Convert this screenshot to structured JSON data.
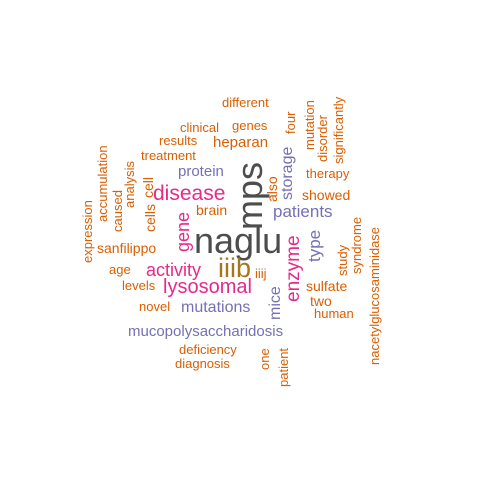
{
  "colors": {
    "dark_gray": "#4d4d4d",
    "olive": "#a6761d",
    "magenta": "#e7298a",
    "purple": "#7570b3",
    "orange": "#d95f02",
    "background": "#ffffff"
  },
  "words": [
    {
      "text": "naglu",
      "color": "dark_gray",
      "orientation": "horizontal"
    },
    {
      "text": "mps",
      "color": "dark_gray",
      "orientation": "vertical"
    },
    {
      "text": "iiib",
      "color": "olive",
      "orientation": "horizontal"
    },
    {
      "text": "disease",
      "color": "magenta",
      "orientation": "horizontal"
    },
    {
      "text": "lysosomal",
      "color": "magenta",
      "orientation": "horizontal"
    },
    {
      "text": "activity",
      "color": "magenta",
      "orientation": "horizontal"
    },
    {
      "text": "gene",
      "color": "magenta",
      "orientation": "vertical"
    },
    {
      "text": "enzyme",
      "color": "magenta",
      "orientation": "vertical"
    },
    {
      "text": "patients",
      "color": "purple",
      "orientation": "horizontal"
    },
    {
      "text": "mutations",
      "color": "purple",
      "orientation": "horizontal"
    },
    {
      "text": "mucopolysaccharidosis",
      "color": "purple",
      "orientation": "horizontal"
    },
    {
      "text": "protein",
      "color": "purple",
      "orientation": "horizontal"
    },
    {
      "text": "storage",
      "color": "purple",
      "orientation": "vertical"
    },
    {
      "text": "type",
      "color": "purple",
      "orientation": "vertical"
    },
    {
      "text": "mice",
      "color": "purple",
      "orientation": "vertical"
    },
    {
      "text": "heparan",
      "color": "orange",
      "orientation": "horizontal"
    },
    {
      "text": "brain",
      "color": "orange",
      "orientation": "horizontal"
    },
    {
      "text": "showed",
      "color": "orange",
      "orientation": "horizontal"
    },
    {
      "text": "sulfate",
      "color": "orange",
      "orientation": "horizontal"
    },
    {
      "text": "therapy",
      "color": "orange",
      "orientation": "horizontal"
    },
    {
      "text": "sanfilippo",
      "color": "orange",
      "orientation": "horizontal"
    },
    {
      "text": "treatment",
      "color": "orange",
      "orientation": "horizontal"
    },
    {
      "text": "clinical",
      "color": "orange",
      "orientation": "horizontal"
    },
    {
      "text": "genes",
      "color": "orange",
      "orientation": "horizontal"
    },
    {
      "text": "results",
      "color": "orange",
      "orientation": "horizontal"
    },
    {
      "text": "different",
      "color": "orange",
      "orientation": "horizontal"
    },
    {
      "text": "two",
      "color": "orange",
      "orientation": "horizontal"
    },
    {
      "text": "human",
      "color": "orange",
      "orientation": "horizontal"
    },
    {
      "text": "novel",
      "color": "orange",
      "orientation": "horizontal"
    },
    {
      "text": "levels",
      "color": "orange",
      "orientation": "horizontal"
    },
    {
      "text": "age",
      "color": "orange",
      "orientation": "horizontal"
    },
    {
      "text": "deficiency",
      "color": "orange",
      "orientation": "horizontal"
    },
    {
      "text": "diagnosis",
      "color": "orange",
      "orientation": "horizontal"
    },
    {
      "text": "iiij",
      "color": "orange",
      "orientation": "horizontal"
    },
    {
      "text": "cell",
      "color": "orange",
      "orientation": "vertical"
    },
    {
      "text": "cells",
      "color": "orange",
      "orientation": "vertical"
    },
    {
      "text": "caused",
      "color": "orange",
      "orientation": "vertical"
    },
    {
      "text": "analysis",
      "color": "orange",
      "orientation": "vertical"
    },
    {
      "text": "accumulation",
      "color": "orange",
      "orientation": "vertical"
    },
    {
      "text": "expression",
      "color": "orange",
      "orientation": "vertical"
    },
    {
      "text": "also",
      "color": "orange",
      "orientation": "vertical"
    },
    {
      "text": "four",
      "color": "orange",
      "orientation": "vertical"
    },
    {
      "text": "mutation",
      "color": "orange",
      "orientation": "vertical"
    },
    {
      "text": "disorder",
      "color": "orange",
      "orientation": "vertical"
    },
    {
      "text": "significantly",
      "color": "orange",
      "orientation": "vertical"
    },
    {
      "text": "study",
      "color": "orange",
      "orientation": "vertical"
    },
    {
      "text": "syndrome",
      "color": "orange",
      "orientation": "vertical"
    },
    {
      "text": "nacetylglucosaminidase",
      "color": "orange",
      "orientation": "vertical"
    },
    {
      "text": "one",
      "color": "orange",
      "orientation": "vertical"
    },
    {
      "text": "patient",
      "color": "orange",
      "orientation": "vertical"
    }
  ]
}
